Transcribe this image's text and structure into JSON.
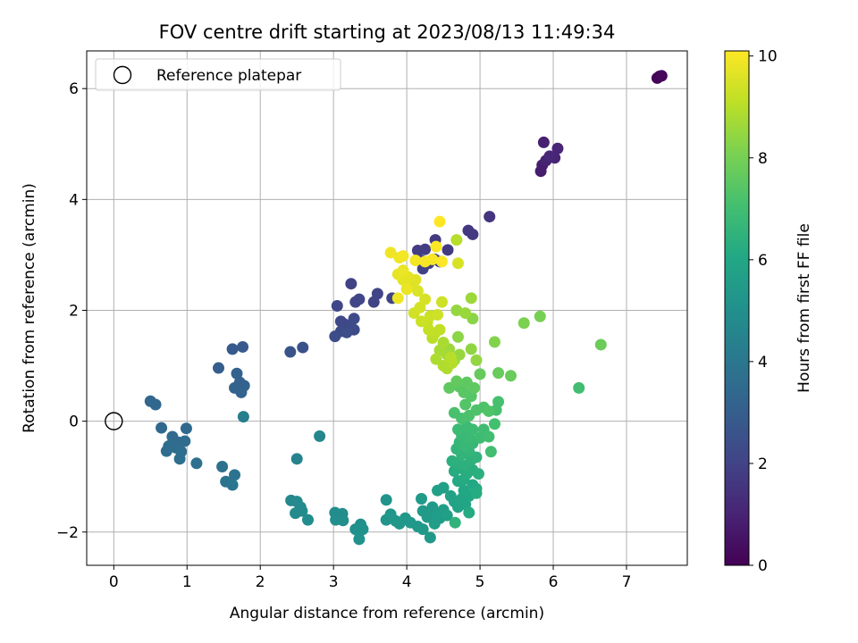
{
  "chart_data": {
    "type": "scatter",
    "title": "FOV centre drift starting at 2023/08/13 11:49:34",
    "xlabel": "Angular distance from reference (arcmin)",
    "ylabel": "Rotation from reference (arcmin)",
    "xlim": [
      -0.37,
      7.83
    ],
    "ylim": [
      -2.6,
      6.68
    ],
    "xticks": [
      0,
      1,
      2,
      3,
      4,
      5,
      6,
      7
    ],
    "yticks": [
      -2,
      0,
      2,
      4,
      6
    ],
    "grid": true,
    "legend": {
      "position": "top-left",
      "entries": [
        "Reference platepar"
      ]
    },
    "reference_point": {
      "x": 0,
      "y": 0
    },
    "colorbar": {
      "label": "Hours from first FF file",
      "colormap": "viridis",
      "range": [
        0,
        10.1
      ],
      "ticks": [
        0,
        2,
        4,
        6,
        8,
        10
      ]
    },
    "points": [
      {
        "x": 7.42,
        "y": 6.19,
        "hours": 0.1
      },
      {
        "x": 7.45,
        "y": 6.22,
        "hours": 0.15
      },
      {
        "x": 7.48,
        "y": 6.23,
        "hours": 0.2
      },
      {
        "x": 5.87,
        "y": 5.03,
        "hours": 0.9
      },
      {
        "x": 5.85,
        "y": 4.62,
        "hours": 0.85
      },
      {
        "x": 5.83,
        "y": 4.51,
        "hours": 0.8
      },
      {
        "x": 5.9,
        "y": 4.7,
        "hours": 0.95
      },
      {
        "x": 6.02,
        "y": 4.75,
        "hours": 1.0
      },
      {
        "x": 6.06,
        "y": 4.92,
        "hours": 1.05
      },
      {
        "x": 5.95,
        "y": 4.78,
        "hours": 1.1
      },
      {
        "x": 5.13,
        "y": 3.69,
        "hours": 1.5
      },
      {
        "x": 4.84,
        "y": 3.44,
        "hours": 1.6
      },
      {
        "x": 4.9,
        "y": 3.37,
        "hours": 1.65
      },
      {
        "x": 4.39,
        "y": 3.27,
        "hours": 1.7
      },
      {
        "x": 4.56,
        "y": 3.09,
        "hours": 1.75
      },
      {
        "x": 4.15,
        "y": 3.08,
        "hours": 1.8
      },
      {
        "x": 4.25,
        "y": 3.1,
        "hours": 1.8
      },
      {
        "x": 4.2,
        "y": 2.9,
        "hours": 1.85
      },
      {
        "x": 4.3,
        "y": 2.85,
        "hours": 1.85
      },
      {
        "x": 4.45,
        "y": 2.88,
        "hours": 1.9
      },
      {
        "x": 4.38,
        "y": 2.92,
        "hours": 1.9
      },
      {
        "x": 4.22,
        "y": 2.75,
        "hours": 1.95
      },
      {
        "x": 3.24,
        "y": 2.48,
        "hours": 2.0
      },
      {
        "x": 3.8,
        "y": 2.22,
        "hours": 2.0
      },
      {
        "x": 3.6,
        "y": 2.3,
        "hours": 2.05
      },
      {
        "x": 3.55,
        "y": 2.15,
        "hours": 2.05
      },
      {
        "x": 3.3,
        "y": 2.15,
        "hours": 2.1
      },
      {
        "x": 3.35,
        "y": 2.2,
        "hours": 2.1
      },
      {
        "x": 3.05,
        "y": 2.08,
        "hours": 2.15
      },
      {
        "x": 3.1,
        "y": 1.8,
        "hours": 2.2
      },
      {
        "x": 3.15,
        "y": 1.75,
        "hours": 2.2
      },
      {
        "x": 3.2,
        "y": 1.68,
        "hours": 2.25
      },
      {
        "x": 3.1,
        "y": 1.62,
        "hours": 2.25
      },
      {
        "x": 3.28,
        "y": 1.85,
        "hours": 2.3
      },
      {
        "x": 3.28,
        "y": 1.65,
        "hours": 2.3
      },
      {
        "x": 3.02,
        "y": 1.53,
        "hours": 2.35
      },
      {
        "x": 3.18,
        "y": 1.6,
        "hours": 2.35
      },
      {
        "x": 2.58,
        "y": 1.33,
        "hours": 2.5
      },
      {
        "x": 2.41,
        "y": 1.25,
        "hours": 2.6
      },
      {
        "x": 1.76,
        "y": 1.34,
        "hours": 2.8
      },
      {
        "x": 1.62,
        "y": 1.3,
        "hours": 2.85
      },
      {
        "x": 1.43,
        "y": 0.96,
        "hours": 3.0
      },
      {
        "x": 1.68,
        "y": 0.86,
        "hours": 3.1
      },
      {
        "x": 1.72,
        "y": 0.7,
        "hours": 3.15
      },
      {
        "x": 1.65,
        "y": 0.6,
        "hours": 3.2
      },
      {
        "x": 1.78,
        "y": 0.64,
        "hours": 3.2
      },
      {
        "x": 1.74,
        "y": 0.52,
        "hours": 3.25
      },
      {
        "x": 0.5,
        "y": 0.36,
        "hours": 3.3
      },
      {
        "x": 0.57,
        "y": 0.3,
        "hours": 3.35
      },
      {
        "x": 0.65,
        "y": -0.12,
        "hours": 3.4
      },
      {
        "x": 0.99,
        "y": -0.13,
        "hours": 3.45
      },
      {
        "x": 0.8,
        "y": -0.28,
        "hours": 3.5
      },
      {
        "x": 0.88,
        "y": -0.38,
        "hours": 3.5
      },
      {
        "x": 0.97,
        "y": -0.36,
        "hours": 3.55
      },
      {
        "x": 0.85,
        "y": -0.48,
        "hours": 3.55
      },
      {
        "x": 0.75,
        "y": -0.45,
        "hours": 3.6
      },
      {
        "x": 0.72,
        "y": -0.54,
        "hours": 3.6
      },
      {
        "x": 0.92,
        "y": -0.55,
        "hours": 3.65
      },
      {
        "x": 0.9,
        "y": -0.68,
        "hours": 3.65
      },
      {
        "x": 1.13,
        "y": -0.76,
        "hours": 3.7
      },
      {
        "x": 1.48,
        "y": -0.82,
        "hours": 3.75
      },
      {
        "x": 1.65,
        "y": -0.97,
        "hours": 3.8
      },
      {
        "x": 1.53,
        "y": -1.09,
        "hours": 3.85
      },
      {
        "x": 1.62,
        "y": -1.15,
        "hours": 3.9
      },
      {
        "x": 1.77,
        "y": 0.08,
        "hours": 4.3
      },
      {
        "x": 2.5,
        "y": -0.68,
        "hours": 4.5
      },
      {
        "x": 2.81,
        "y": -0.27,
        "hours": 4.6
      },
      {
        "x": 2.42,
        "y": -1.43,
        "hours": 4.7
      },
      {
        "x": 2.5,
        "y": -1.45,
        "hours": 4.75
      },
      {
        "x": 2.55,
        "y": -1.55,
        "hours": 4.75
      },
      {
        "x": 2.48,
        "y": -1.66,
        "hours": 4.8
      },
      {
        "x": 2.57,
        "y": -1.62,
        "hours": 4.8
      },
      {
        "x": 2.65,
        "y": -1.78,
        "hours": 4.85
      },
      {
        "x": 3.02,
        "y": -1.65,
        "hours": 4.9
      },
      {
        "x": 3.12,
        "y": -1.67,
        "hours": 4.9
      },
      {
        "x": 3.03,
        "y": -1.78,
        "hours": 4.95
      },
      {
        "x": 3.13,
        "y": -1.79,
        "hours": 4.95
      },
      {
        "x": 3.3,
        "y": -1.95,
        "hours": 5.0
      },
      {
        "x": 3.37,
        "y": -1.86,
        "hours": 5.0
      },
      {
        "x": 3.35,
        "y": -2.0,
        "hours": 5.05
      },
      {
        "x": 3.4,
        "y": -1.95,
        "hours": 5.05
      },
      {
        "x": 3.35,
        "y": -2.13,
        "hours": 5.1
      },
      {
        "x": 3.72,
        "y": -1.42,
        "hours": 5.2
      },
      {
        "x": 3.72,
        "y": -1.78,
        "hours": 5.2
      },
      {
        "x": 3.78,
        "y": -1.68,
        "hours": 5.25
      },
      {
        "x": 3.85,
        "y": -1.8,
        "hours": 5.25
      },
      {
        "x": 3.9,
        "y": -1.85,
        "hours": 5.3
      },
      {
        "x": 3.98,
        "y": -1.75,
        "hours": 5.3
      },
      {
        "x": 4.05,
        "y": -1.83,
        "hours": 5.35
      },
      {
        "x": 4.15,
        "y": -1.9,
        "hours": 5.35
      },
      {
        "x": 4.22,
        "y": -1.95,
        "hours": 5.4
      },
      {
        "x": 4.32,
        "y": -2.1,
        "hours": 5.4
      },
      {
        "x": 4.2,
        "y": -1.4,
        "hours": 5.45
      },
      {
        "x": 4.22,
        "y": -1.62,
        "hours": 5.45
      },
      {
        "x": 4.28,
        "y": -1.73,
        "hours": 5.5
      },
      {
        "x": 4.35,
        "y": -1.55,
        "hours": 5.5
      },
      {
        "x": 4.4,
        "y": -1.68,
        "hours": 5.55
      },
      {
        "x": 4.45,
        "y": -1.75,
        "hours": 5.55
      },
      {
        "x": 4.38,
        "y": -1.85,
        "hours": 5.6
      },
      {
        "x": 4.5,
        "y": -1.6,
        "hours": 5.6
      },
      {
        "x": 4.55,
        "y": -1.7,
        "hours": 5.65
      },
      {
        "x": 4.42,
        "y": -1.25,
        "hours": 5.65
      },
      {
        "x": 4.5,
        "y": -1.2,
        "hours": 5.7
      },
      {
        "x": 4.6,
        "y": -1.35,
        "hours": 5.75
      },
      {
        "x": 4.65,
        "y": -1.45,
        "hours": 5.8
      },
      {
        "x": 4.7,
        "y": -1.55,
        "hours": 5.85
      },
      {
        "x": 4.75,
        "y": -1.4,
        "hours": 5.9
      },
      {
        "x": 4.8,
        "y": -1.5,
        "hours": 5.95
      },
      {
        "x": 4.78,
        "y": -1.25,
        "hours": 6.0
      },
      {
        "x": 4.85,
        "y": -1.35,
        "hours": 6.0
      },
      {
        "x": 4.9,
        "y": -1.15,
        "hours": 6.05
      },
      {
        "x": 4.95,
        "y": -1.22,
        "hours": 6.1
      },
      {
        "x": 4.7,
        "y": -1.08,
        "hours": 6.1
      },
      {
        "x": 4.78,
        "y": -1.05,
        "hours": 6.15
      },
      {
        "x": 4.85,
        "y": -1.65,
        "hours": 6.15
      },
      {
        "x": 4.95,
        "y": -1.3,
        "hours": 6.2
      },
      {
        "x": 4.65,
        "y": -0.9,
        "hours": 6.2
      },
      {
        "x": 4.72,
        "y": -0.85,
        "hours": 6.25
      },
      {
        "x": 4.82,
        "y": -0.95,
        "hours": 6.25
      },
      {
        "x": 4.9,
        "y": -0.88,
        "hours": 6.3
      },
      {
        "x": 4.98,
        "y": -0.95,
        "hours": 6.35
      },
      {
        "x": 4.62,
        "y": -0.72,
        "hours": 6.35
      },
      {
        "x": 4.7,
        "y": -0.75,
        "hours": 6.4
      },
      {
        "x": 4.8,
        "y": -0.8,
        "hours": 6.4
      },
      {
        "x": 4.88,
        "y": -0.7,
        "hours": 6.45
      },
      {
        "x": 4.95,
        "y": -0.65,
        "hours": 6.5
      },
      {
        "x": 4.66,
        "y": -1.83,
        "hours": 6.5
      },
      {
        "x": 4.75,
        "y": -0.6,
        "hours": 6.55
      },
      {
        "x": 4.85,
        "y": -0.55,
        "hours": 6.6
      },
      {
        "x": 4.68,
        "y": -0.5,
        "hours": 6.6
      },
      {
        "x": 4.72,
        "y": -0.38,
        "hours": 6.65
      },
      {
        "x": 4.8,
        "y": -0.45,
        "hours": 6.7
      },
      {
        "x": 4.9,
        "y": -0.4,
        "hours": 6.7
      },
      {
        "x": 4.75,
        "y": -0.25,
        "hours": 6.75
      },
      {
        "x": 4.85,
        "y": -0.28,
        "hours": 6.8
      },
      {
        "x": 4.7,
        "y": -0.15,
        "hours": 6.85
      },
      {
        "x": 4.82,
        "y": -0.1,
        "hours": 6.85
      },
      {
        "x": 4.9,
        "y": -0.15,
        "hours": 6.9
      },
      {
        "x": 5.0,
        "y": -0.3,
        "hours": 6.9
      },
      {
        "x": 5.05,
        "y": -0.15,
        "hours": 6.95
      },
      {
        "x": 5.15,
        "y": -0.55,
        "hours": 7.0
      },
      {
        "x": 5.12,
        "y": -0.28,
        "hours": 7.0
      },
      {
        "x": 5.2,
        "y": -0.05,
        "hours": 7.05
      },
      {
        "x": 5.22,
        "y": 0.2,
        "hours": 7.1
      },
      {
        "x": 5.25,
        "y": 0.35,
        "hours": 7.1
      },
      {
        "x": 4.65,
        "y": 0.15,
        "hours": 7.15
      },
      {
        "x": 4.75,
        "y": 0.05,
        "hours": 7.15
      },
      {
        "x": 4.85,
        "y": 0.1,
        "hours": 7.2
      },
      {
        "x": 4.95,
        "y": 0.2,
        "hours": 7.25
      },
      {
        "x": 5.05,
        "y": 0.25,
        "hours": 7.25
      },
      {
        "x": 5.12,
        "y": 0.18,
        "hours": 7.3
      },
      {
        "x": 4.8,
        "y": 0.3,
        "hours": 7.35
      },
      {
        "x": 4.88,
        "y": 0.45,
        "hours": 7.4
      },
      {
        "x": 4.78,
        "y": 0.52,
        "hours": 7.45
      },
      {
        "x": 4.72,
        "y": 0.62,
        "hours": 7.5
      },
      {
        "x": 4.82,
        "y": 0.7,
        "hours": 7.55
      },
      {
        "x": 4.92,
        "y": 0.6,
        "hours": 7.6
      },
      {
        "x": 4.58,
        "y": 0.6,
        "hours": 7.6
      },
      {
        "x": 4.68,
        "y": 0.72,
        "hours": 7.65
      },
      {
        "x": 5.0,
        "y": 0.85,
        "hours": 7.7
      },
      {
        "x": 5.25,
        "y": 0.87,
        "hours": 7.75
      },
      {
        "x": 5.42,
        "y": 0.82,
        "hours": 7.75
      },
      {
        "x": 6.35,
        "y": 0.6,
        "hours": 7.0
      },
      {
        "x": 6.65,
        "y": 1.38,
        "hours": 7.8
      },
      {
        "x": 5.82,
        "y": 1.89,
        "hours": 8.0
      },
      {
        "x": 5.6,
        "y": 1.77,
        "hours": 8.1
      },
      {
        "x": 5.2,
        "y": 1.43,
        "hours": 8.2
      },
      {
        "x": 4.9,
        "y": 1.85,
        "hours": 8.3
      },
      {
        "x": 4.7,
        "y": 1.52,
        "hours": 8.35
      },
      {
        "x": 4.88,
        "y": 1.3,
        "hours": 8.4
      },
      {
        "x": 4.95,
        "y": 1.1,
        "hours": 8.45
      },
      {
        "x": 4.72,
        "y": 1.2,
        "hours": 8.5
      },
      {
        "x": 4.65,
        "y": 1.1,
        "hours": 8.55
      },
      {
        "x": 4.58,
        "y": 1.3,
        "hours": 8.6
      },
      {
        "x": 4.68,
        "y": 2.0,
        "hours": 8.5
      },
      {
        "x": 4.8,
        "y": 1.95,
        "hours": 8.55
      },
      {
        "x": 4.88,
        "y": 2.22,
        "hours": 8.6
      },
      {
        "x": 4.55,
        "y": 1.2,
        "hours": 8.7
      },
      {
        "x": 4.45,
        "y": 1.28,
        "hours": 8.75
      },
      {
        "x": 4.5,
        "y": 1.42,
        "hours": 8.8
      },
      {
        "x": 4.4,
        "y": 1.12,
        "hours": 8.85
      },
      {
        "x": 4.5,
        "y": 1.0,
        "hours": 8.9
      },
      {
        "x": 4.55,
        "y": 0.95,
        "hours": 8.9
      },
      {
        "x": 4.62,
        "y": 1.05,
        "hours": 8.95
      },
      {
        "x": 4.6,
        "y": 1.15,
        "hours": 9.0
      },
      {
        "x": 4.35,
        "y": 1.5,
        "hours": 9.05
      },
      {
        "x": 4.38,
        "y": 1.58,
        "hours": 9.1
      },
      {
        "x": 4.45,
        "y": 1.65,
        "hours": 9.15
      },
      {
        "x": 4.3,
        "y": 1.65,
        "hours": 9.2
      },
      {
        "x": 4.28,
        "y": 1.78,
        "hours": 9.25
      },
      {
        "x": 4.2,
        "y": 1.8,
        "hours": 9.3
      },
      {
        "x": 4.32,
        "y": 1.9,
        "hours": 9.3
      },
      {
        "x": 4.42,
        "y": 1.92,
        "hours": 9.35
      },
      {
        "x": 4.48,
        "y": 2.15,
        "hours": 9.35
      },
      {
        "x": 4.1,
        "y": 1.95,
        "hours": 9.4
      },
      {
        "x": 4.18,
        "y": 2.05,
        "hours": 9.45
      },
      {
        "x": 4.25,
        "y": 2.2,
        "hours": 9.5
      },
      {
        "x": 4.15,
        "y": 2.35,
        "hours": 9.55
      },
      {
        "x": 4.05,
        "y": 2.45,
        "hours": 9.6
      },
      {
        "x": 4.12,
        "y": 2.55,
        "hours": 9.65
      },
      {
        "x": 4.02,
        "y": 2.6,
        "hours": 9.7
      },
      {
        "x": 3.95,
        "y": 2.55,
        "hours": 9.7
      },
      {
        "x": 3.88,
        "y": 2.65,
        "hours": 9.75
      },
      {
        "x": 3.95,
        "y": 2.72,
        "hours": 9.8
      },
      {
        "x": 4.0,
        "y": 2.38,
        "hours": 9.8
      },
      {
        "x": 3.88,
        "y": 2.22,
        "hours": 9.85
      },
      {
        "x": 3.78,
        "y": 3.04,
        "hours": 9.9
      },
      {
        "x": 3.9,
        "y": 2.95,
        "hours": 9.9
      },
      {
        "x": 3.95,
        "y": 2.98,
        "hours": 9.95
      },
      {
        "x": 4.12,
        "y": 2.9,
        "hours": 9.95
      },
      {
        "x": 4.25,
        "y": 2.88,
        "hours": 10.0
      },
      {
        "x": 4.35,
        "y": 2.92,
        "hours": 10.0
      },
      {
        "x": 4.48,
        "y": 2.88,
        "hours": 10.05
      },
      {
        "x": 4.4,
        "y": 3.15,
        "hours": 10.05
      },
      {
        "x": 4.45,
        "y": 3.6,
        "hours": 10.1
      },
      {
        "x": 4.7,
        "y": 2.85,
        "hours": 9.5
      },
      {
        "x": 4.68,
        "y": 3.27,
        "hours": 9.0
      }
    ]
  }
}
